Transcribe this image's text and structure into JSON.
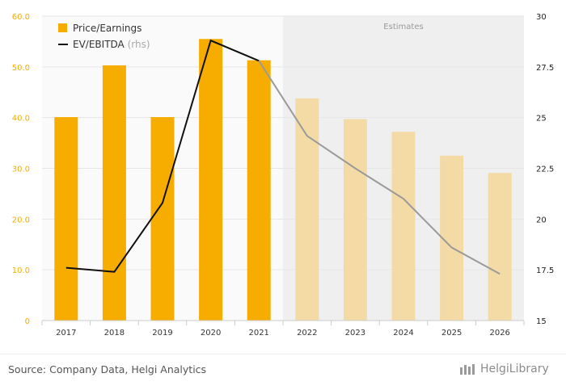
{
  "chart_data": {
    "type": "bar+line",
    "categories": [
      "2017",
      "2018",
      "2019",
      "2020",
      "2021",
      "2022",
      "2023",
      "2024",
      "2025",
      "2026"
    ],
    "series": [
      {
        "name": "Price/Earnings",
        "type": "bar",
        "axis": "left",
        "values": [
          40.1,
          50.3,
          40.1,
          55.5,
          51.3,
          43.8,
          39.7,
          37.2,
          32.5,
          29.1
        ]
      },
      {
        "name": "EV/EBITDA",
        "type": "line",
        "axis": "right",
        "values": [
          17.6,
          17.4,
          20.8,
          28.8,
          27.8,
          24.1,
          22.5,
          21.0,
          18.6,
          17.3
        ]
      }
    ],
    "estimates_from_index": 5,
    "estimates_label": "Estimates",
    "left_axis": {
      "min": 0,
      "max": 60,
      "ticks": [
        "0",
        "10.0",
        "20.0",
        "30.0",
        "40.0",
        "50.0",
        "60.0"
      ]
    },
    "right_axis": {
      "min": 15,
      "max": 30,
      "ticks": [
        "15",
        "17.5",
        "20",
        "22.5",
        "25",
        "27.5",
        "30"
      ]
    },
    "legend": {
      "position": "top-left",
      "items": [
        {
          "label": "Price/Earnings"
        },
        {
          "label": "EV/EBITDA",
          "suffix": "(rhs)"
        }
      ]
    },
    "colors": {
      "bar": "#f6ad00",
      "bar_estimate": "#f4dba6",
      "line": "#111111",
      "line_estimate": "#9a9a9a",
      "left_tick": "#f6ad00",
      "right_tick": "#222222",
      "estimate_bg": "#efefef",
      "plot_bg": "#fafafa"
    }
  },
  "footer": {
    "source": "Source: Company Data, Helgi Analytics",
    "logo_text": "HelgiLibrary"
  }
}
